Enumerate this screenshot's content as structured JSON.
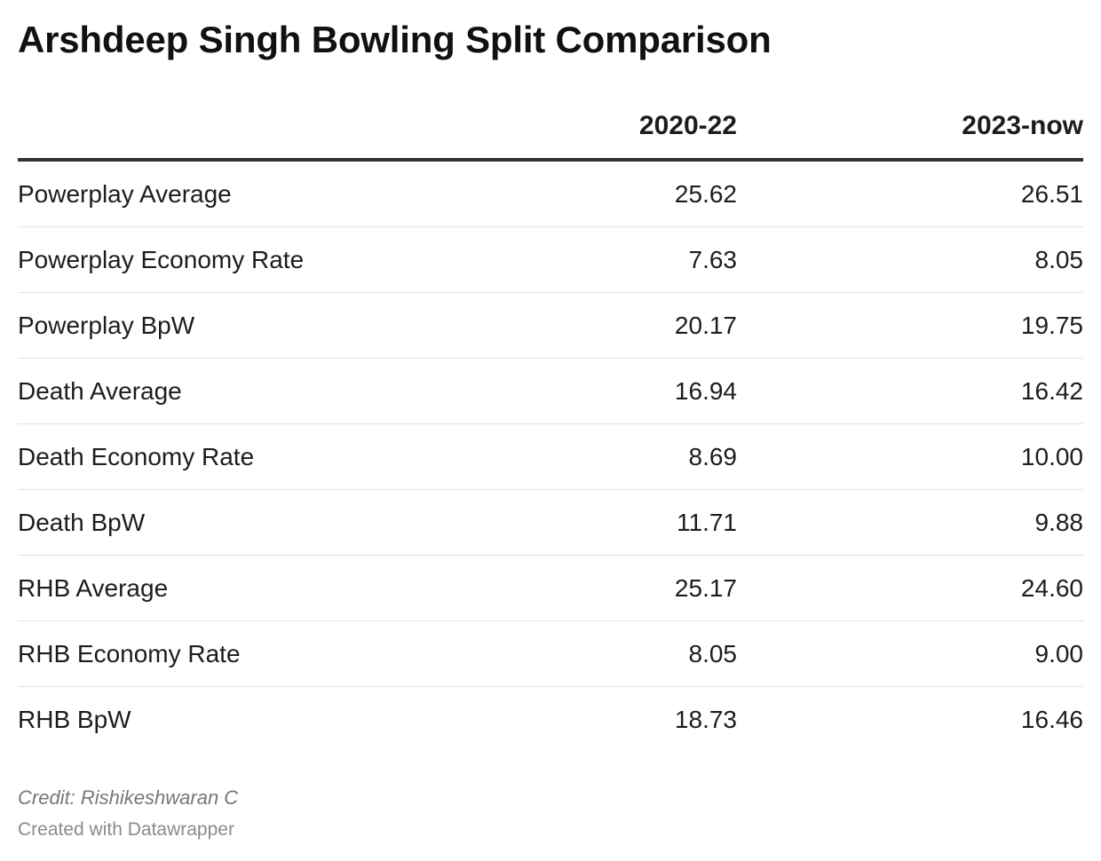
{
  "title": "Arshdeep Singh Bowling Split Comparison",
  "table": {
    "columns": [
      "",
      "2020-22",
      "2023-now"
    ],
    "rows": [
      {
        "label": "Powerplay Average",
        "a": "25.62",
        "b": "26.51"
      },
      {
        "label": "Powerplay Economy Rate",
        "a": "7.63",
        "b": "8.05"
      },
      {
        "label": "Powerplay BpW",
        "a": "20.17",
        "b": "19.75"
      },
      {
        "label": "Death Average",
        "a": "16.94",
        "b": "16.42"
      },
      {
        "label": "Death Economy Rate",
        "a": "8.69",
        "b": "10.00"
      },
      {
        "label": "Death BpW",
        "a": "11.71",
        "b": "9.88"
      },
      {
        "label": "RHB Average",
        "a": "25.17",
        "b": "24.60"
      },
      {
        "label": "RHB Economy Rate",
        "a": "8.05",
        "b": "9.00"
      },
      {
        "label": "RHB BpW",
        "a": "18.73",
        "b": "16.46"
      }
    ]
  },
  "credit": "Credit: Rishikeshwaran C",
  "footer": "Created with Datawrapper",
  "chart_data": {
    "type": "table",
    "title": "Arshdeep Singh Bowling Split Comparison",
    "categories": [
      "Powerplay Average",
      "Powerplay Economy Rate",
      "Powerplay BpW",
      "Death Average",
      "Death Economy Rate",
      "Death BpW",
      "RHB Average",
      "RHB Economy Rate",
      "RHB BpW"
    ],
    "series": [
      {
        "name": "2020-22",
        "values": [
          25.62,
          7.63,
          20.17,
          16.94,
          8.69,
          11.71,
          25.17,
          8.05,
          18.73
        ]
      },
      {
        "name": "2023-now",
        "values": [
          26.51,
          8.05,
          19.75,
          16.42,
          10.0,
          9.88,
          24.6,
          9.0,
          16.46
        ]
      }
    ]
  }
}
